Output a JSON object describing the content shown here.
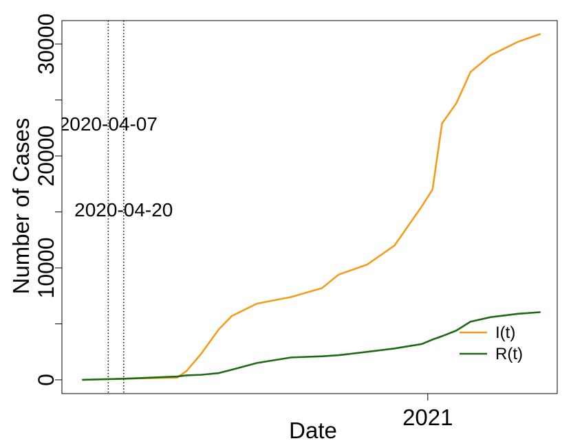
{
  "chart_data": {
    "type": "line",
    "x_label": "Date",
    "y_label": "Number of Cases",
    "x": [
      "2020-03-16",
      "2020-04-21",
      "2020-06-04",
      "2020-06-12",
      "2020-06-24",
      "2020-07-09",
      "2020-07-20",
      "2020-08-10",
      "2020-09-08",
      "2020-10-04",
      "2020-10-18",
      "2020-11-11",
      "2020-12-04",
      "2020-12-27",
      "2021-01-05",
      "2021-01-13",
      "2021-01-25",
      "2021-02-06",
      "2021-02-23",
      "2021-03-18",
      "2021-04-06"
    ],
    "series": [
      {
        "name": "I(t)",
        "color": "#f39c1e",
        "values": [
          0,
          100,
          200,
          800,
          2300,
          4500,
          5700,
          6800,
          7400,
          8200,
          9400,
          10300,
          12000,
          15500,
          17000,
          22900,
          24700,
          27500,
          29000,
          30200,
          30900
        ]
      },
      {
        "name": "R(t)",
        "color": "#1a6b12",
        "values": [
          0,
          100,
          300,
          400,
          450,
          600,
          900,
          1500,
          2000,
          2100,
          2200,
          2500,
          2800,
          3200,
          3600,
          3900,
          4400,
          5200,
          5600,
          5900,
          6050
        ]
      }
    ],
    "xlim": [
      "2020-02-28",
      "2021-04-20"
    ],
    "xticks": [
      {
        "value": "2021-01-01",
        "label": "2021"
      }
    ],
    "ylim": [
      -1230,
      32090
    ],
    "yticks": [
      0,
      10000,
      20000,
      30000
    ],
    "yminor": [
      5000,
      15000,
      25000
    ],
    "vlines": [
      "2020-04-07",
      "2020-04-20"
    ],
    "legend": "bottomright"
  }
}
